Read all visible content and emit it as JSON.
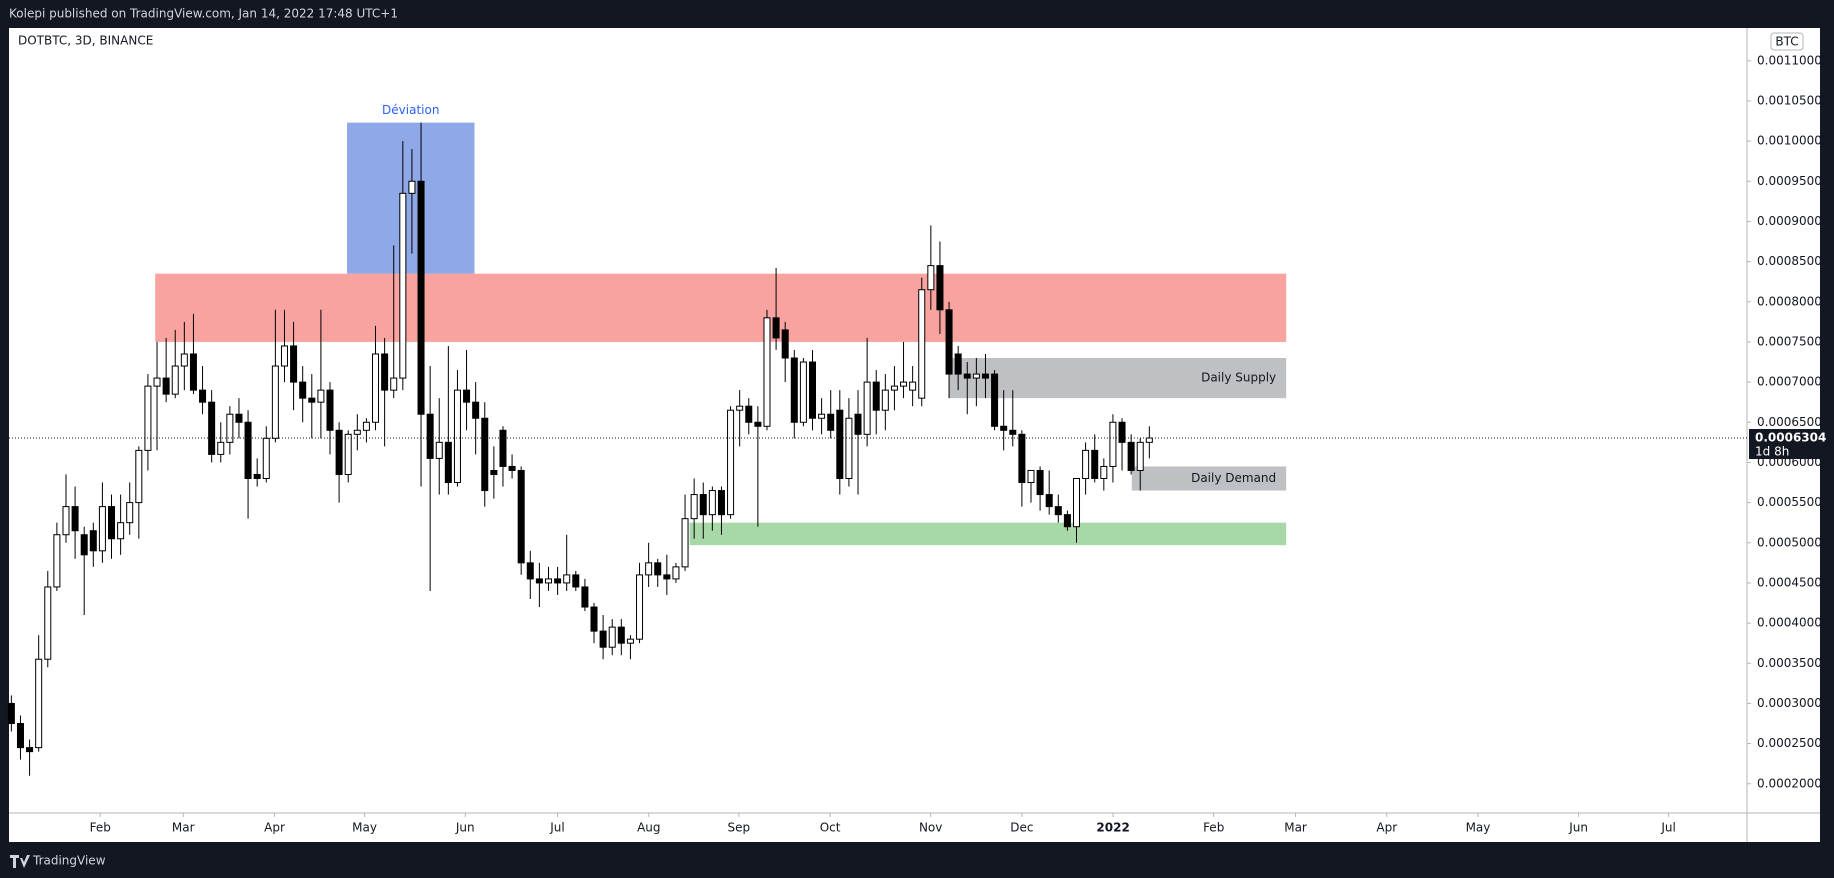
{
  "header": {
    "publisher": "Kolepi published on TradingView.com, Jan 14, 2022 17:48 UTC+1"
  },
  "footer": {
    "brand": "TradingView"
  },
  "chart_data": {
    "type": "candlestick",
    "title": "DOTBTC, 3D, BINANCE",
    "y_unit": "BTC",
    "up_color": "#ffffff",
    "down_color": "#000000",
    "wick_color": "#000000",
    "xlim": [
      -0.26,
      190.65
    ],
    "xticks": [
      {
        "value": 9.76,
        "label": "Feb"
      },
      {
        "value": 18.88,
        "label": "Mar"
      },
      {
        "value": 28.91,
        "label": "Apr"
      },
      {
        "value": 38.8,
        "label": "May"
      },
      {
        "value": 49.85,
        "label": "Jun"
      },
      {
        "value": 59.99,
        "label": "Jul"
      },
      {
        "value": 70.02,
        "label": "Aug"
      },
      {
        "value": 79.91,
        "label": "Sep"
      },
      {
        "value": 89.93,
        "label": "Oct"
      },
      {
        "value": 100.98,
        "label": "Nov"
      },
      {
        "value": 111.0,
        "label": "Dec"
      },
      {
        "value": 121.02,
        "label": "2022",
        "bold": true
      },
      {
        "value": 132.07,
        "label": "Feb"
      },
      {
        "value": 141.06,
        "label": "Mar"
      },
      {
        "value": 151.08,
        "label": "Apr"
      },
      {
        "value": 161.1,
        "label": "May"
      },
      {
        "value": 172.15,
        "label": "Jun"
      },
      {
        "value": 182.04,
        "label": "Jul"
      }
    ],
    "ylim": [
      0.0001636,
      0.0011408
    ],
    "yticks": [
      {
        "value": 0.0011,
        "label": "0.0011000"
      },
      {
        "value": 0.00105,
        "label": "0.0010500"
      },
      {
        "value": 0.001,
        "label": "0.0010000"
      },
      {
        "value": 0.00095,
        "label": "0.0009500"
      },
      {
        "value": 0.0009,
        "label": "0.0009000"
      },
      {
        "value": 0.00085,
        "label": "0.0008500"
      },
      {
        "value": 0.0008,
        "label": "0.0008000"
      },
      {
        "value": 0.00075,
        "label": "0.0007500"
      },
      {
        "value": 0.0007,
        "label": "0.0007000"
      },
      {
        "value": 0.00065,
        "label": "0.0006500"
      },
      {
        "value": 0.0006,
        "label": "0.0006000"
      },
      {
        "value": 0.00055,
        "label": "0.0005500"
      },
      {
        "value": 0.0005,
        "label": "0.0005000"
      },
      {
        "value": 0.00045,
        "label": "0.0004500"
      },
      {
        "value": 0.0004,
        "label": "0.0004000"
      },
      {
        "value": 0.00035,
        "label": "0.0003500"
      },
      {
        "value": 0.0003,
        "label": "0.0003000"
      },
      {
        "value": 0.00025,
        "label": "0.0002500"
      },
      {
        "value": 0.0002,
        "label": "0.0002000"
      }
    ],
    "open": [
      0.0003,
      0.000275,
      0.000245,
      0.000245,
      0.000355,
      0.000445,
      0.00051,
      0.000545,
      0.00051,
      0.000515,
      0.00049,
      0.000545,
      0.000505,
      0.000525,
      0.00055,
      0.000615,
      0.000695,
      0.000705,
      0.000685,
      0.00072,
      0.000735,
      0.00069,
      0.000675,
      0.00061,
      0.000625,
      0.00066,
      0.00065,
      0.000585,
      0.00058,
      0.00063,
      0.00072,
      0.000745,
      0.0007,
      0.00068,
      0.000675,
      0.00069,
      0.00064,
      0.000585,
      0.000635,
      0.00064,
      0.00065,
      0.000735,
      0.00069,
      0.000705,
      0.000935,
      0.00095,
      0.00066,
      0.000605,
      0.000625,
      0.000575,
      0.00069,
      0.000675,
      0.000655,
      0.00059,
      0.00064,
      0.000595,
      0.00059,
      0.000475,
      0.000455,
      0.00045,
      0.000455,
      0.00045,
      0.00046,
      0.000445,
      0.00042,
      0.00039,
      0.00037,
      0.000395,
      0.000375,
      0.00038,
      0.00046,
      0.000475,
      0.00046,
      0.000455,
      0.00047,
      0.00053,
      0.00056,
      0.000535,
      0.000565,
      0.000535,
      0.000665,
      0.00067,
      0.00065,
      0.000645,
      0.00078,
      0.000765,
      0.00073,
      0.00065,
      0.000725,
      0.000655,
      0.00066,
      0.000665,
      0.00058,
      0.00066,
      0.000635,
      0.0007,
      0.000665,
      0.00069,
      0.000695,
      0.00069,
      0.00068,
      0.000815,
      0.000845,
      0.00079,
      0.000735,
      0.00071,
      0.000705,
      0.00071,
      0.00071,
      0.000645,
      0.00064,
      0.000635,
      0.000575,
      0.00059,
      0.00056,
      0.000545,
      0.000535,
      0.00052,
      0.00058,
      0.000615,
      0.00058,
      0.000595,
      0.00065,
      0.000625,
      0.00059,
      0.000625
    ],
    "high": [
      0.00031,
      0.000285,
      0.000255,
      0.000385,
      0.000465,
      0.000525,
      0.000585,
      0.00057,
      0.00052,
      0.000525,
      0.000575,
      0.00056,
      0.00056,
      0.000575,
      0.00062,
      0.00071,
      0.00075,
      0.000755,
      0.000765,
      0.000775,
      0.000785,
      0.00072,
      0.00069,
      0.00065,
      0.00067,
      0.00068,
      0.000665,
      0.000605,
      0.000645,
      0.00079,
      0.00079,
      0.000775,
      0.00072,
      0.00071,
      0.00079,
      0.0007,
      0.00065,
      0.00064,
      0.00066,
      0.000655,
      0.00077,
      0.000755,
      0.00087,
      0.001,
      0.00099,
      0.001023,
      0.00072,
      0.00068,
      0.000745,
      0.000715,
      0.00074,
      0.0007,
      0.000675,
      0.00062,
      0.000645,
      0.00061,
      0.000595,
      0.00049,
      0.000475,
      0.00047,
      0.00047,
      0.00051,
      0.000465,
      0.000455,
      0.000425,
      0.00041,
      0.000405,
      0.000405,
      0.000385,
      0.000475,
      0.0005,
      0.00048,
      0.000485,
      0.000475,
      0.00056,
      0.00058,
      0.000575,
      0.00057,
      0.00057,
      0.00067,
      0.00069,
      0.00068,
      0.00067,
      0.00079,
      0.000842,
      0.000775,
      0.00074,
      0.00073,
      0.00074,
      0.00068,
      0.00069,
      0.00069,
      0.00068,
      0.00069,
      0.000755,
      0.000715,
      0.00071,
      0.00072,
      0.00075,
      0.00072,
      0.00083,
      0.000895,
      0.000875,
      0.0008,
      0.000745,
      0.000725,
      0.00073,
      0.000735,
      0.000715,
      0.00069,
      0.00069,
      0.00064,
      0.00059,
      0.000595,
      0.00059,
      0.00056,
      0.00054,
      0.00058,
      0.000625,
      0.000635,
      0.000605,
      0.00066,
      0.000655,
      0.000635,
      0.00063,
      0.000645
    ],
    "low": [
      0.000265,
      0.00023,
      0.00021,
      0.00024,
      0.000345,
      0.00044,
      0.0005,
      0.00048,
      0.00041,
      0.00047,
      0.000475,
      0.00048,
      0.000485,
      0.00051,
      0.000505,
      0.00059,
      0.000615,
      0.000675,
      0.00068,
      0.00069,
      0.000685,
      0.00066,
      0.0006,
      0.0006,
      0.00061,
      0.00063,
      0.00053,
      0.00057,
      0.000575,
      0.000625,
      0.0007,
      0.000665,
      0.00065,
      0.00063,
      0.00063,
      0.00061,
      0.00055,
      0.000575,
      0.000615,
      0.000625,
      0.00064,
      0.00062,
      0.00068,
      0.00069,
      0.00086,
      0.00057,
      0.00044,
      0.00056,
      0.00056,
      0.00057,
      0.00064,
      0.00061,
      0.000545,
      0.000555,
      0.00057,
      0.00058,
      0.00046,
      0.00043,
      0.00042,
      0.00044,
      0.000435,
      0.00044,
      0.00044,
      0.000415,
      0.000375,
      0.000355,
      0.00036,
      0.00036,
      0.000355,
      0.000375,
      0.000445,
      0.000445,
      0.000435,
      0.00045,
      0.000465,
      0.000505,
      0.000505,
      0.000515,
      0.00051,
      0.00053,
      0.00062,
      0.000635,
      0.00052,
      0.00064,
      0.00074,
      0.0007,
      0.00063,
      0.000645,
      0.00064,
      0.000635,
      0.00063,
      0.00056,
      0.00057,
      0.00056,
      0.00062,
      0.000635,
      0.00064,
      0.000665,
      0.00068,
      0.00067,
      0.00067,
      0.00079,
      0.00076,
      0.00068,
      0.00069,
      0.00066,
      0.00067,
      0.00068,
      0.00064,
      0.000615,
      0.00062,
      0.000545,
      0.00055,
      0.00054,
      0.000535,
      0.000525,
      0.000515,
      0.0005,
      0.00056,
      0.000575,
      0.000565,
      0.000575,
      0.00059,
      0.000585,
      0.000565,
      0.000605
    ],
    "close": [
      0.000275,
      0.000245,
      0.00024,
      0.000355,
      0.000445,
      0.00051,
      0.000545,
      0.000515,
      0.000485,
      0.00049,
      0.000545,
      0.000505,
      0.000525,
      0.00055,
      0.000615,
      0.000695,
      0.000705,
      0.000685,
      0.00072,
      0.000735,
      0.00069,
      0.000675,
      0.00061,
      0.000625,
      0.00066,
      0.00065,
      0.00058,
      0.00058,
      0.00063,
      0.00072,
      0.000745,
      0.0007,
      0.00068,
      0.000675,
      0.00069,
      0.00064,
      0.000585,
      0.000635,
      0.00064,
      0.00065,
      0.000735,
      0.00069,
      0.000705,
      0.000935,
      0.00095,
      0.00066,
      0.000605,
      0.000625,
      0.000575,
      0.00069,
      0.000675,
      0.000655,
      0.000565,
      0.000585,
      0.000595,
      0.00059,
      0.000475,
      0.000455,
      0.00045,
      0.000455,
      0.00045,
      0.00046,
      0.000445,
      0.00042,
      0.00039,
      0.00037,
      0.000395,
      0.000375,
      0.00038,
      0.00046,
      0.000475,
      0.00046,
      0.000455,
      0.00047,
      0.00053,
      0.00056,
      0.000535,
      0.000565,
      0.000535,
      0.000665,
      0.00067,
      0.00065,
      0.000645,
      0.00078,
      0.000755,
      0.00073,
      0.00065,
      0.000725,
      0.000655,
      0.00066,
      0.00064,
      0.00058,
      0.000655,
      0.000635,
      0.0007,
      0.000665,
      0.00069,
      0.000695,
      0.0007,
      0.0007,
      0.000815,
      0.000845,
      0.00079,
      0.00071,
      0.00071,
      0.000705,
      0.00071,
      0.000705,
      0.000645,
      0.00064,
      0.000635,
      0.000575,
      0.00059,
      0.00056,
      0.000545,
      0.000535,
      0.00052,
      0.00058,
      0.000615,
      0.00058,
      0.000595,
      0.00065,
      0.000625,
      0.00059,
      0.000625,
      0.0006304
    ],
    "last_price": {
      "value": 0.0006304,
      "label": "0.0006304",
      "countdown": "1d 8h"
    },
    "zones": [
      {
        "color": "#f9a3a0",
        "x": [
          15.8,
          140.03
        ],
        "y": [
          0.00075,
          0.000835
        ]
      },
      {
        "label": "Déviation",
        "color": "#8fa8e8",
        "text_color": "#2962ff",
        "label_position": "top",
        "x": [
          36.87,
          50.87
        ],
        "y": [
          0.000835,
          0.001023
        ]
      },
      {
        "label": "Daily Supply",
        "color": "#bfc0c4",
        "text_color": "#131722",
        "label_position": "right",
        "x": [
          103.03,
          140.03
        ],
        "y": [
          0.00068,
          0.00073
        ]
      },
      {
        "label": "Daily Demand",
        "color": "#bfc0c4",
        "text_color": "#131722",
        "label_position": "right",
        "x": [
          123.07,
          140.03
        ],
        "y": [
          0.000565,
          0.000595
        ]
      },
      {
        "color": "#a8d8a8",
        "x": [
          74.5,
          140.03
        ],
        "y": [
          0.000497,
          0.000525
        ]
      }
    ]
  }
}
